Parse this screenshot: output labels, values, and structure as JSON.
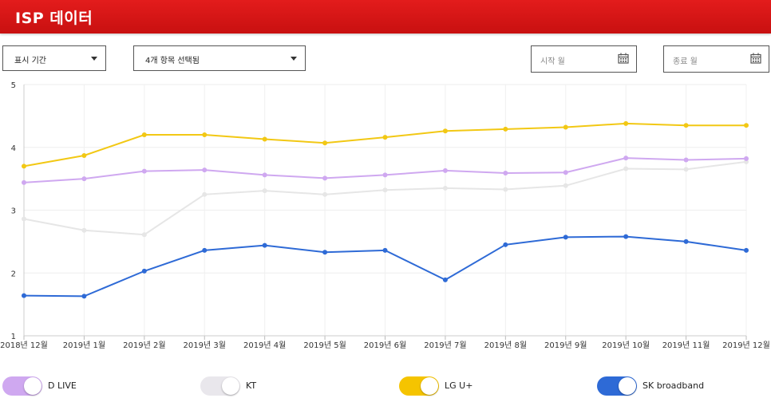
{
  "header": {
    "title": "ISP 데이터"
  },
  "filters": {
    "period_label": "표시 기간",
    "items_label": "4개 항목 선택됨",
    "start_placeholder": "시작 월",
    "end_placeholder": "종료 월"
  },
  "colors": {
    "header": "#d81414",
    "D LIVE": "#cfa8f0",
    "KT": "#e6e6e6",
    "LG U+": "#f2c814",
    "SK broadband": "#2e6ad6"
  },
  "chart_data": {
    "type": "line",
    "title": "",
    "xlabel": "",
    "ylabel": "",
    "ylim": [
      1,
      5
    ],
    "yticks": [
      1,
      2,
      3,
      4,
      5
    ],
    "grid": true,
    "legend_position": "bottom",
    "categories": [
      "2018년 12월",
      "2019년 1월",
      "2019년 2월",
      "2019년 3월",
      "2019년 4월",
      "2019년 5월",
      "2019년 6월",
      "2019년 7월",
      "2019년 8월",
      "2019년 9월",
      "2019년 10월",
      "2019년 11월",
      "2019년 12월"
    ],
    "series": [
      {
        "name": "D LIVE",
        "values": [
          3.44,
          3.5,
          3.62,
          3.64,
          3.56,
          3.51,
          3.56,
          3.63,
          3.59,
          3.6,
          3.83,
          3.8,
          3.82
        ]
      },
      {
        "name": "KT",
        "values": [
          2.86,
          2.68,
          2.61,
          3.25,
          3.31,
          3.25,
          3.32,
          3.35,
          3.33,
          3.39,
          3.66,
          3.65,
          3.77
        ]
      },
      {
        "name": "LG U+",
        "values": [
          3.7,
          3.87,
          4.2,
          4.2,
          4.13,
          4.07,
          4.16,
          4.26,
          4.29,
          4.32,
          4.38,
          4.35,
          4.35
        ]
      },
      {
        "name": "SK broadband",
        "values": [
          1.64,
          1.63,
          2.03,
          2.36,
          2.44,
          2.33,
          2.36,
          1.89,
          2.45,
          2.57,
          2.58,
          2.5,
          2.36
        ]
      }
    ]
  }
}
